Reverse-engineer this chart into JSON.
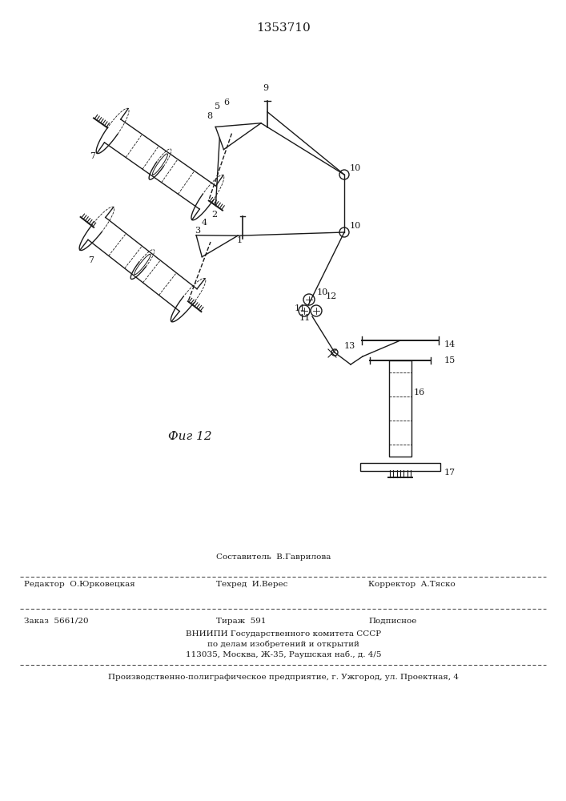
{
  "title": "1353710",
  "fig_label": "Фиг 12",
  "bg_color": "#ffffff",
  "line_color": "#1a1a1a",
  "editor_label": "Редактор",
  "editor_name": "О.Юрковецкая",
  "composer_label": "Составитель",
  "composer_name": "В.Гаврилова",
  "techred_label": "Техред",
  "techred_name": "И.Верес",
  "corrector_label": "Корректор",
  "corrector_name": "А.Тяско",
  "order_text": "Заказ  5661/20",
  "tirazh_text": "Тираж  591",
  "podpisnoe_text": "Подписное",
  "vniiipi_text": "ВНИИПИ Государственного комитета СССР",
  "po_delam_text": "по делам изобретений и открытий",
  "address_text": "113035, Москва, Ж-35, Раушская наб., д. 4/5",
  "proizv_text": "Производственно-полиграфическое предприятие, г. Ужгород, ул. Проектная, 4"
}
